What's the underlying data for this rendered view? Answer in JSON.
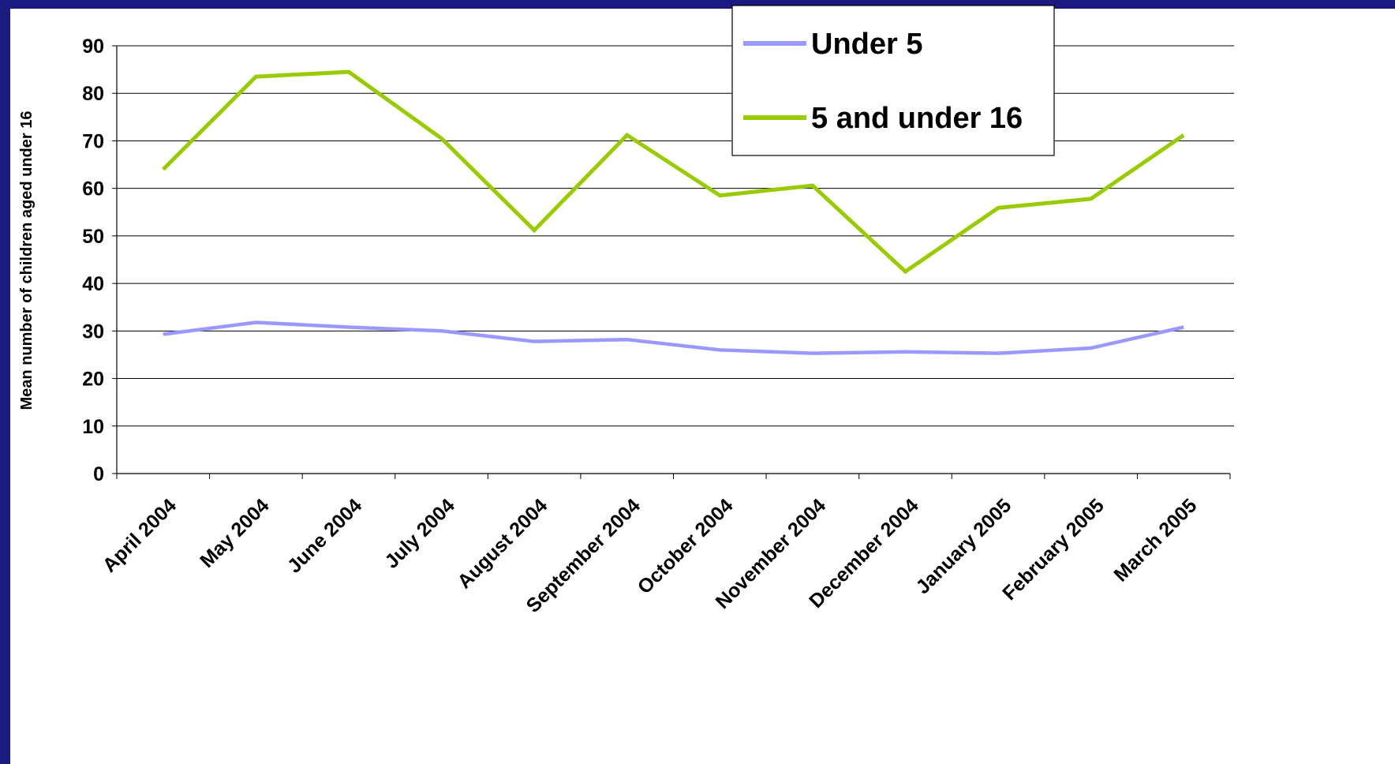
{
  "colors": {
    "frame": "#1a1a80",
    "background": "#ffffff",
    "gridline": "#000000",
    "under5": "#9999ff",
    "five_to_16": "#99cc00"
  },
  "chart_data": {
    "type": "line",
    "title": "",
    "xlabel": "",
    "ylabel": "Mean number of children aged under 16",
    "ylim": [
      0,
      90
    ],
    "yticks": [
      "0",
      "10",
      "20",
      "30",
      "40",
      "50",
      "60",
      "70",
      "80",
      "90"
    ],
    "grid": true,
    "legend_position": "top-right",
    "categories": [
      "April 2004",
      "May 2004",
      "June 2004",
      "July 2004",
      "August 2004",
      "September 2004",
      "October 2004",
      "November 2004",
      "December 2004",
      "January 2005",
      "February 2005",
      "March 2005"
    ],
    "series": [
      {
        "name": "Under 5",
        "color": "#9999ff",
        "values": [
          29.3,
          31.8,
          30.8,
          30.0,
          27.8,
          28.2,
          26.0,
          25.3,
          25.6,
          25.3,
          26.4,
          30.8
        ]
      },
      {
        "name": "5 and under 16",
        "color": "#99cc00",
        "values": [
          64.0,
          83.5,
          84.5,
          70.5,
          51.2,
          71.2,
          58.5,
          60.6,
          42.5,
          55.9,
          57.8,
          71.2
        ]
      }
    ]
  }
}
